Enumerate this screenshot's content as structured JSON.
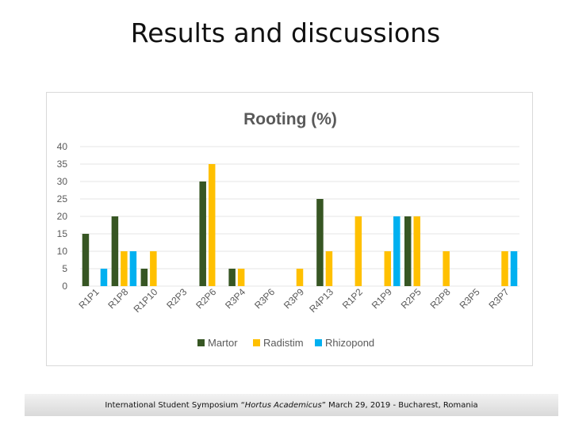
{
  "slide": {
    "title": "Results and discussions",
    "footer": {
      "prefix": "International Student Symposium “",
      "italic": "Hortus Academicus",
      "suffix": "” March 29, 2019 - Bucharest, Romania"
    }
  },
  "chart_data": {
    "type": "bar",
    "title": "Rooting (%)",
    "xlabel": "",
    "ylabel": "",
    "ylim": [
      0,
      40
    ],
    "yticks": [
      0,
      5,
      10,
      15,
      20,
      25,
      30,
      35,
      40
    ],
    "grid": true,
    "legend_position": "bottom",
    "categories": [
      "R1P1",
      "R1P8",
      "R1P10",
      "R2P3",
      "R2P6",
      "R3P4",
      "R3P6",
      "R3P9",
      "R4P13",
      "R1P2",
      "R1P9",
      "R2P5",
      "R2P8",
      "R3P5",
      "R3P7"
    ],
    "series": [
      {
        "name": "Martor",
        "color": "#375623",
        "values": [
          15,
          20,
          5,
          0,
          30,
          5,
          0,
          0,
          25,
          0,
          0,
          20,
          0,
          0,
          0
        ]
      },
      {
        "name": "Radistim",
        "color": "#ffc000",
        "values": [
          0,
          10,
          10,
          0,
          35,
          5,
          0,
          5,
          10,
          20,
          10,
          20,
          10,
          0,
          10
        ]
      },
      {
        "name": "Rhizopond",
        "color": "#00b0f0",
        "values": [
          5,
          10,
          0,
          0,
          0,
          0,
          0,
          0,
          0,
          0,
          20,
          0,
          0,
          0,
          10
        ]
      }
    ],
    "colors": {
      "title": "#595959",
      "axis_text": "#595959",
      "grid": "#e6e6e6"
    }
  }
}
